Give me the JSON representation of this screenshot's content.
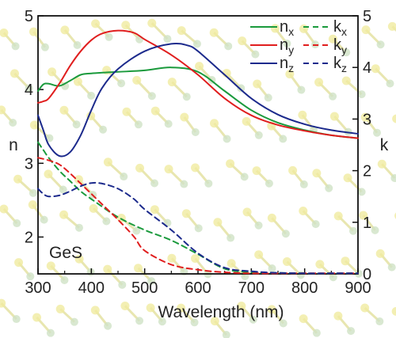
{
  "chart_data": {
    "type": "line",
    "xlabel": "Wavelength (nm)",
    "ylabel_left": "n",
    "ylabel_right": "k",
    "xlim": [
      300,
      900
    ],
    "ylim_left": [
      1.5,
      5.0
    ],
    "ylim_right": [
      0,
      5
    ],
    "xticks": [
      "300",
      "400",
      "500",
      "600",
      "700",
      "800",
      "900"
    ],
    "yticks_left": [
      "2",
      "3",
      "4",
      "5"
    ],
    "yticks_right": [
      "0",
      "1",
      "2",
      "3",
      "4",
      "5"
    ],
    "annotation": "GeS",
    "legend_position": "top-right",
    "colors": {
      "x": "#1a9a3c",
      "y": "#e01e1e",
      "z": "#1c2a8c"
    },
    "background": "GeS crystal structure (yellow and green ball-and-stick atoms)",
    "series": [
      {
        "name": "n",
        "sub": "x",
        "axis": "left",
        "style": "solid",
        "color": "#1a9a3c",
        "x": [
          300,
          310,
          320,
          340,
          360,
          380,
          400,
          450,
          500,
          550,
          600,
          650,
          700,
          750,
          800,
          850,
          900
        ],
        "y": [
          3.98,
          4.07,
          4.08,
          4.05,
          4.12,
          4.2,
          4.22,
          4.24,
          4.26,
          4.3,
          4.24,
          3.98,
          3.72,
          3.55,
          3.45,
          3.38,
          3.34
        ]
      },
      {
        "name": "n",
        "sub": "y",
        "axis": "left",
        "style": "solid",
        "color": "#e01e1e",
        "x": [
          300,
          310,
          320,
          340,
          360,
          380,
          400,
          420,
          450,
          480,
          500,
          550,
          600,
          650,
          700,
          750,
          800,
          850,
          900
        ],
        "y": [
          3.82,
          3.84,
          3.88,
          4.08,
          4.32,
          4.52,
          4.67,
          4.76,
          4.8,
          4.77,
          4.68,
          4.47,
          4.2,
          3.88,
          3.65,
          3.52,
          3.44,
          3.38,
          3.34
        ]
      },
      {
        "name": "n",
        "sub": "z",
        "axis": "left",
        "style": "solid",
        "color": "#1c2a8c",
        "x": [
          300,
          310,
          320,
          340,
          360,
          380,
          400,
          420,
          450,
          500,
          550,
          580,
          600,
          650,
          700,
          750,
          800,
          850,
          900
        ],
        "y": [
          3.65,
          3.45,
          3.25,
          3.1,
          3.15,
          3.38,
          3.72,
          4.02,
          4.28,
          4.52,
          4.62,
          4.6,
          4.52,
          4.2,
          3.88,
          3.66,
          3.53,
          3.45,
          3.4
        ]
      },
      {
        "name": "k",
        "sub": "x",
        "axis": "right",
        "style": "dashed",
        "color": "#1a9a3c",
        "x": [
          300,
          310,
          320,
          340,
          360,
          380,
          400,
          450,
          500,
          550,
          600,
          650,
          700,
          750,
          800,
          850,
          900
        ],
        "y": [
          2.55,
          2.4,
          2.25,
          2.0,
          1.8,
          1.6,
          1.45,
          1.1,
          0.85,
          0.65,
          0.38,
          0.1,
          0.03,
          0.02,
          0.01,
          0.01,
          0.01
        ]
      },
      {
        "name": "k",
        "sub": "y",
        "axis": "right",
        "style": "dashed",
        "color": "#e01e1e",
        "x": [
          300,
          320,
          340,
          360,
          380,
          400,
          420,
          450,
          480,
          500,
          550,
          600,
          650,
          700,
          750,
          800,
          850,
          900
        ],
        "y": [
          2.25,
          2.2,
          2.12,
          1.95,
          1.75,
          1.55,
          1.35,
          1.05,
          0.72,
          0.45,
          0.18,
          0.08,
          0.03,
          0.01,
          0.01,
          0.01,
          0.01,
          0.01
        ]
      },
      {
        "name": "k",
        "sub": "z",
        "axis": "right",
        "style": "dashed",
        "color": "#1c2a8c",
        "x": [
          300,
          310,
          320,
          340,
          360,
          380,
          400,
          420,
          450,
          480,
          500,
          550,
          600,
          650,
          700,
          750,
          800,
          850,
          900
        ],
        "y": [
          1.65,
          1.55,
          1.5,
          1.52,
          1.6,
          1.7,
          1.76,
          1.75,
          1.65,
          1.45,
          1.25,
          0.85,
          0.4,
          0.12,
          0.05,
          0.02,
          0.01,
          0.01,
          0.01
        ]
      }
    ]
  }
}
